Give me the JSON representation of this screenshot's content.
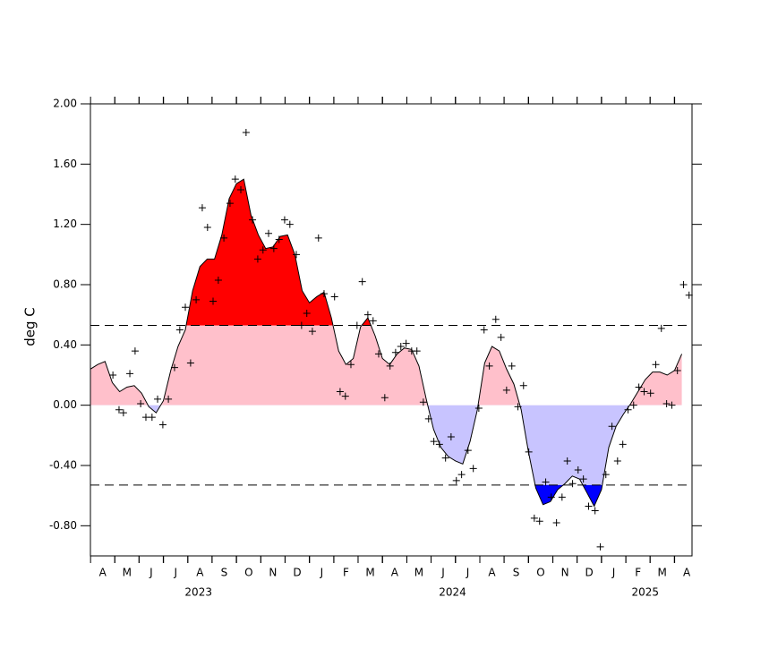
{
  "chart_data": {
    "type": "line",
    "ylabel": "deg C",
    "xlim": [
      2023.25,
      2025.31
    ],
    "ylim": [
      -1,
      2
    ],
    "yticks": [
      {
        "value": 2,
        "label": "2.00"
      },
      {
        "value": 1.6,
        "label": "1.60"
      },
      {
        "value": 1.2,
        "label": "1.20"
      },
      {
        "value": 0.8,
        "label": "0.80"
      },
      {
        "value": 0.4,
        "label": "0.40"
      },
      {
        "value": 0,
        "label": "0.00"
      },
      {
        "value": -0.4,
        "label": "-0.40"
      },
      {
        "value": -0.8,
        "label": "-0.80"
      }
    ],
    "xticks": [
      {
        "value": 2023.292,
        "label": "A"
      },
      {
        "value": 2023.375,
        "label": "M"
      },
      {
        "value": 2023.458,
        "label": "J"
      },
      {
        "value": 2023.542,
        "label": "J"
      },
      {
        "value": 2023.625,
        "label": "A"
      },
      {
        "value": 2023.708,
        "label": "S"
      },
      {
        "value": 2023.792,
        "label": "O"
      },
      {
        "value": 2023.875,
        "label": "N"
      },
      {
        "value": 2023.958,
        "label": "D"
      },
      {
        "value": 2024.042,
        "label": "J"
      },
      {
        "value": 2024.125,
        "label": "F"
      },
      {
        "value": 2024.208,
        "label": "M"
      },
      {
        "value": 2024.292,
        "label": "A"
      },
      {
        "value": 2024.375,
        "label": "M"
      },
      {
        "value": 2024.458,
        "label": "J"
      },
      {
        "value": 2024.542,
        "label": "J"
      },
      {
        "value": 2024.625,
        "label": "A"
      },
      {
        "value": 2024.708,
        "label": "S"
      },
      {
        "value": 2024.792,
        "label": "O"
      },
      {
        "value": 2024.875,
        "label": "N"
      },
      {
        "value": 2024.958,
        "label": "D"
      },
      {
        "value": 2025.042,
        "label": "J"
      },
      {
        "value": 2025.125,
        "label": "F"
      },
      {
        "value": 2025.208,
        "label": "M"
      },
      {
        "value": 2025.292,
        "label": "A"
      }
    ],
    "year_labels": [
      {
        "value": 2023.62,
        "label": "2023"
      },
      {
        "value": 2024.49,
        "label": "2024"
      },
      {
        "value": 2025.15,
        "label": "2025"
      }
    ],
    "thresholds": [
      0.53,
      -0.53
    ],
    "area_colors": {
      "above_upper": "#ff0000",
      "positive": "#ffc0cb",
      "negative": "#c8c4ff",
      "below_lower": "#0000ff"
    },
    "line_color": "#000000",
    "marker_color": "#000000",
    "series": [
      {
        "x": [
          2023.25,
          2023.275,
          2023.3,
          2023.325,
          2023.35,
          2023.375,
          2023.4,
          2023.425,
          2023.45,
          2023.475,
          2023.5,
          2023.525,
          2023.55,
          2023.575,
          2023.6,
          2023.625,
          2023.65,
          2023.675,
          2023.7,
          2023.725,
          2023.75,
          2023.775,
          2023.8,
          2023.825,
          2023.85,
          2023.875,
          2023.9,
          2023.925,
          2023.95,
          2023.975,
          2024.0,
          2024.025,
          2024.05,
          2024.075,
          2024.1,
          2024.125,
          2024.15,
          2024.175,
          2024.2,
          2024.225,
          2024.25,
          2024.275,
          2024.3,
          2024.325,
          2024.35,
          2024.375,
          2024.4,
          2024.425,
          2024.45,
          2024.475,
          2024.5,
          2024.525,
          2024.55,
          2024.575,
          2024.6,
          2024.625,
          2024.65,
          2024.675,
          2024.7,
          2024.725,
          2024.75,
          2024.775,
          2024.8,
          2024.825,
          2024.85,
          2024.875,
          2024.9,
          2024.925,
          2024.95,
          2024.975,
          2025.0,
          2025.025,
          2025.05,
          2025.075,
          2025.1,
          2025.125,
          2025.15,
          2025.175,
          2025.2,
          2025.225,
          2025.25,
          2025.275
        ],
        "values": [
          0.24,
          0.27,
          0.29,
          0.15,
          0.09,
          0.12,
          0.13,
          0.08,
          -0.01,
          -0.05,
          0.03,
          0.23,
          0.39,
          0.5,
          0.76,
          0.92,
          0.97,
          0.97,
          1.13,
          1.37,
          1.47,
          1.5,
          1.26,
          1.13,
          1.04,
          1.05,
          1.12,
          1.13,
          1.0,
          0.76,
          0.68,
          0.72,
          0.75,
          0.58,
          0.36,
          0.27,
          0.31,
          0.52,
          0.58,
          0.46,
          0.31,
          0.27,
          0.34,
          0.38,
          0.37,
          0.26,
          0.04,
          -0.16,
          -0.28,
          -0.34,
          -0.37,
          -0.39,
          -0.24,
          -0.03,
          0.28,
          0.39,
          0.36,
          0.24,
          0.14,
          -0.03,
          -0.31,
          -0.55,
          -0.66,
          -0.64,
          -0.56,
          -0.52,
          -0.47,
          -0.49,
          -0.58,
          -0.67,
          -0.56,
          -0.28,
          -0.14,
          -0.06,
          0.01,
          0.09,
          0.17,
          0.22,
          0.22,
          0.2,
          0.23,
          0.34
        ]
      },
      {
        "marker": "+",
        "x": [
          2023.327,
          2023.348,
          2023.363,
          2023.385,
          2023.403,
          2023.422,
          2023.44,
          2023.461,
          2023.48,
          2023.498,
          2023.517,
          2023.538,
          2023.556,
          2023.575,
          2023.593,
          2023.612,
          2023.633,
          2023.651,
          2023.67,
          2023.688,
          2023.707,
          2023.728,
          2023.746,
          2023.765,
          2023.783,
          2023.805,
          2023.823,
          2023.841,
          2023.86,
          2023.878,
          2023.896,
          2023.915,
          2023.933,
          2023.955,
          2023.973,
          2023.991,
          2024.01,
          2024.031,
          2024.05,
          2024.086,
          2024.105,
          2024.123,
          2024.142,
          2024.163,
          2024.181,
          2024.2,
          2024.218,
          2024.237,
          2024.258,
          2024.276,
          2024.295,
          2024.313,
          2024.331,
          2024.35,
          2024.368,
          2024.39,
          2024.408,
          2024.426,
          2024.445,
          2024.466,
          2024.485,
          2024.503,
          2024.521,
          2024.543,
          2024.561,
          2024.58,
          2024.598,
          2024.616,
          2024.638,
          2024.656,
          2024.675,
          2024.693,
          2024.714,
          2024.733,
          2024.751,
          2024.77,
          2024.788,
          2024.809,
          2024.828,
          2024.846,
          2024.865,
          2024.883,
          2024.901,
          2024.92,
          2024.938,
          2024.956,
          2024.978,
          2024.996,
          2025.015,
          2025.036,
          2025.055,
          2025.073,
          2025.091,
          2025.11,
          2025.128,
          2025.146,
          2025.168,
          2025.186,
          2025.205,
          2025.223,
          2025.241,
          2025.26,
          2025.281,
          2025.3
        ],
        "values": [
          0.2,
          -0.03,
          -0.05,
          0.21,
          0.36,
          0.01,
          -0.08,
          -0.08,
          0.04,
          -0.13,
          0.04,
          0.25,
          0.5,
          0.65,
          0.28,
          0.7,
          1.31,
          1.18,
          0.69,
          0.83,
          1.11,
          1.34,
          1.5,
          1.43,
          1.81,
          1.23,
          0.97,
          1.03,
          1.14,
          1.04,
          1.1,
          1.23,
          1.2,
          1.0,
          0.53,
          0.61,
          0.49,
          1.11,
          0.74,
          0.72,
          0.09,
          0.06,
          0.27,
          0.53,
          0.82,
          0.6,
          0.56,
          0.34,
          0.05,
          0.26,
          0.35,
          0.39,
          0.41,
          0.36,
          0.36,
          0.02,
          -0.09,
          -0.24,
          -0.26,
          -0.35,
          -0.21,
          -0.5,
          -0.46,
          -0.3,
          -0.42,
          -0.02,
          0.5,
          0.26,
          0.57,
          0.45,
          0.1,
          0.26,
          -0.01,
          0.13,
          -0.31,
          -0.75,
          -0.77,
          -0.51,
          -0.61,
          -0.78,
          -0.61,
          -0.37,
          -0.52,
          -0.43,
          -0.49,
          -0.67,
          -0.7,
          -0.94,
          -0.46,
          -0.14,
          -0.37,
          -0.26,
          -0.03,
          0.0,
          0.12,
          0.09,
          0.08,
          0.27,
          0.51,
          0.01,
          0.0,
          0.23,
          0.8,
          0.73
        ]
      }
    ]
  }
}
